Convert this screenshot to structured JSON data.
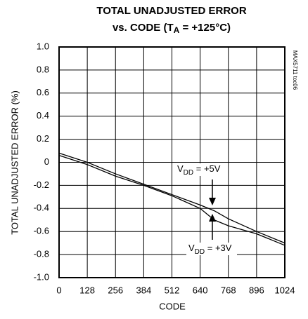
{
  "chart_data": {
    "type": "line",
    "title": {
      "line1": "TOTAL UNADJUSTED ERROR",
      "line2": [
        "vs. CODE (T",
        "A",
        " = +125°C)"
      ]
    },
    "side_note": "MAX5711 toc06",
    "xlabel": "CODE",
    "ylabel": "TOTAL UNADJUSTED ERROR (%)",
    "xlim": [
      0,
      1024
    ],
    "xticks": [
      0,
      128,
      256,
      384,
      512,
      640,
      768,
      896,
      1024
    ],
    "ylim": [
      -1.0,
      1.0
    ],
    "yticks": [
      {
        "value": -1.0,
        "label": "-1.0"
      },
      -0.8,
      -0.6,
      -0.4,
      -0.2,
      0,
      0.2,
      0.4,
      0.6,
      0.8,
      {
        "value": 1.0,
        "label": "1.0"
      }
    ],
    "grid": true,
    "series": [
      {
        "name": [
          "V",
          "DD",
          " = +5V"
        ],
        "color": "#000000",
        "x": [
          0,
          128,
          256,
          384,
          512,
          640,
          704,
          768,
          896,
          1024
        ],
        "values": [
          0.08,
          0.0,
          -0.1,
          -0.19,
          -0.28,
          -0.37,
          -0.42,
          -0.49,
          -0.6,
          -0.7
        ]
      },
      {
        "name": [
          "V",
          "DD",
          " = +3V"
        ],
        "color": "#000000",
        "x": [
          0,
          128,
          256,
          384,
          512,
          640,
          704,
          768,
          896,
          1024
        ],
        "values": [
          0.06,
          -0.02,
          -0.12,
          -0.2,
          -0.29,
          -0.4,
          -0.5,
          -0.55,
          -0.62,
          -0.72
        ]
      }
    ]
  }
}
